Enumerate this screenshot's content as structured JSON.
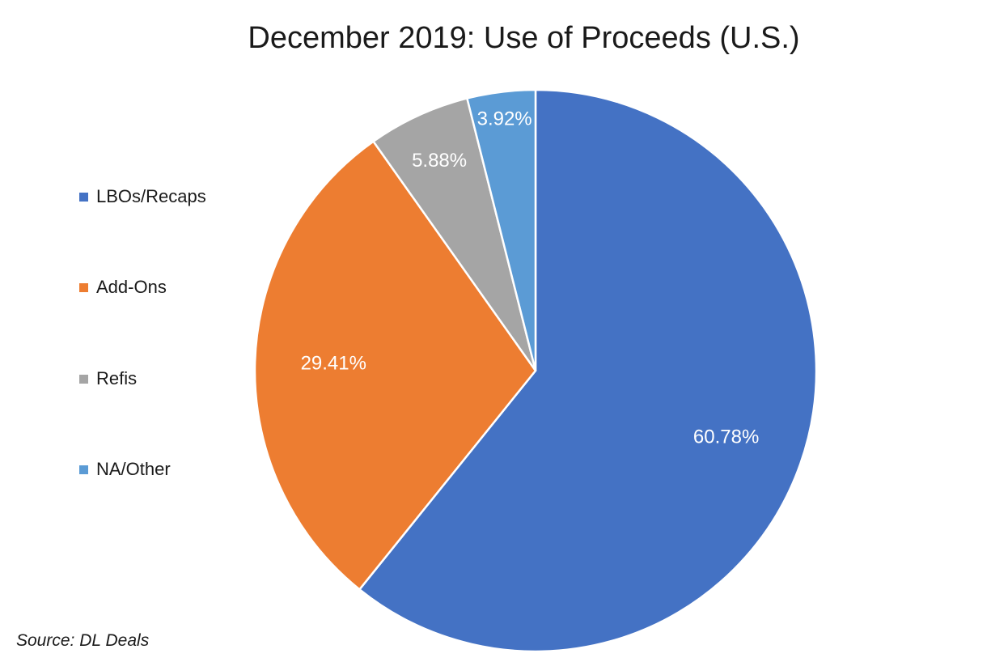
{
  "chart_data": {
    "type": "pie",
    "title": "December 2019: Use of Proceeds (U.S.)",
    "categories": [
      "LBOs/Recaps",
      "Add-Ons",
      "Refis",
      "NA/Other"
    ],
    "values": [
      60.78,
      29.41,
      5.88,
      3.92
    ],
    "data_labels": [
      "60.78%",
      "29.41%",
      "5.88%",
      "3.92%"
    ],
    "colors": [
      "#4472C4",
      "#ED7D31",
      "#A5A5A5",
      "#5B9BD5"
    ],
    "start_angle": "12 o'clock",
    "direction": "clockwise",
    "legend_position": "left"
  },
  "source": "Source: DL Deals"
}
